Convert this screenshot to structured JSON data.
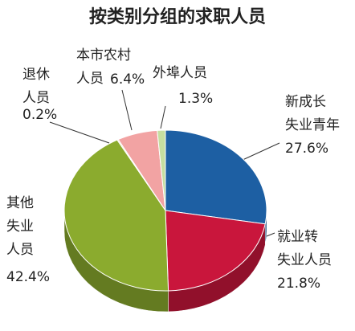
{
  "chart_data": {
    "type": "pie",
    "title": "按类别分组的求职人员",
    "categories": [
      "新成长失业青年",
      "就业转失业人员",
      "其他失业人员",
      "退休人员",
      "本市农村人员",
      "外埠人员"
    ],
    "values": [
      27.6,
      21.8,
      42.4,
      0.2,
      6.4,
      1.3
    ],
    "value_labels": [
      "27.6%",
      "21.8%",
      "42.4%",
      "0.2%",
      "6.4%",
      "1.3%"
    ],
    "colors": [
      "#1d5fa3",
      "#c9163c",
      "#8bab2e",
      "#e9e2c2",
      "#f2a3a3",
      "#c5dea0"
    ]
  }
}
